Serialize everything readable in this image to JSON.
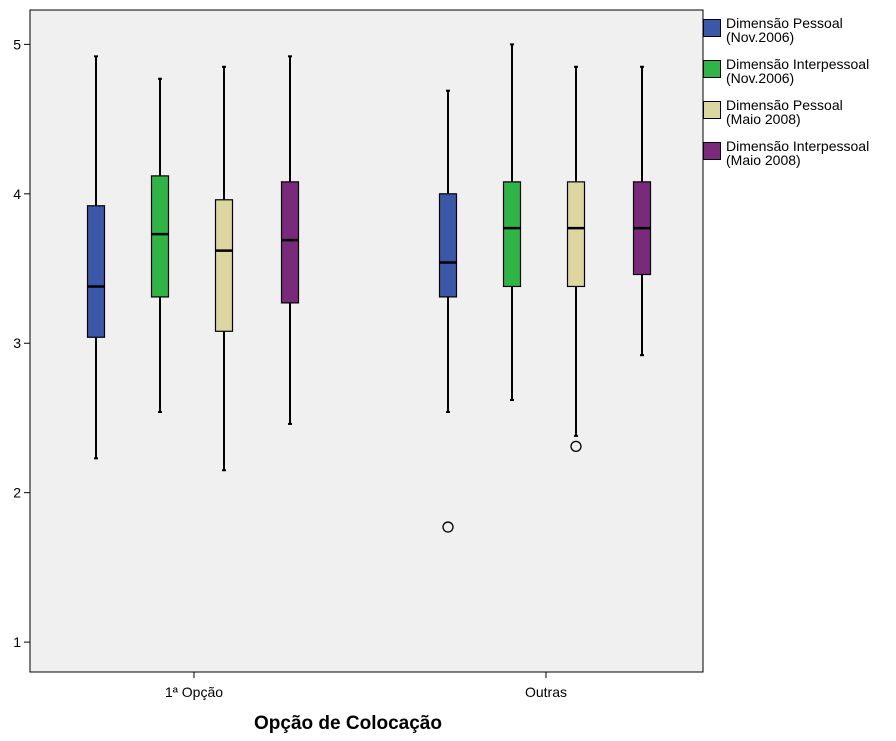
{
  "chart_data": {
    "type": "boxplot",
    "title": "",
    "xlabel": "Opção de Colocação",
    "ylabel": "",
    "ylim": [
      0.8,
      5.23
    ],
    "yticks": [
      1,
      2,
      3,
      4,
      5
    ],
    "categories": [
      "1ª Opção",
      "Outras"
    ],
    "legend_position": "top-right",
    "grid": false,
    "series": [
      {
        "name": "Dimensão Pessoal\n(Nov.2006)",
        "color": "#3b57a8",
        "boxes": [
          {
            "min": 2.23,
            "q1": 3.04,
            "median": 3.38,
            "q3": 3.92,
            "max": 4.92,
            "outliers": []
          },
          {
            "min": 2.54,
            "q1": 3.31,
            "median": 3.54,
            "q3": 4.0,
            "max": 4.69,
            "outliers": [
              1.77
            ]
          }
        ]
      },
      {
        "name": "Dimensão Interpessoal\n(Nov.2006)",
        "color": "#2fb545",
        "boxes": [
          {
            "min": 2.54,
            "q1": 3.31,
            "median": 3.73,
            "q3": 4.12,
            "max": 4.77,
            "outliers": []
          },
          {
            "min": 2.62,
            "q1": 3.38,
            "median": 3.77,
            "q3": 4.08,
            "max": 5.0,
            "outliers": []
          }
        ]
      },
      {
        "name": "Dimensão Pessoal\n(Maio 2008)",
        "color": "#dcd6a0",
        "boxes": [
          {
            "min": 2.15,
            "q1": 3.08,
            "median": 3.62,
            "q3": 3.96,
            "max": 4.85,
            "outliers": []
          },
          {
            "min": 2.38,
            "q1": 3.38,
            "median": 3.77,
            "q3": 4.08,
            "max": 4.85,
            "outliers": [
              2.31
            ]
          }
        ]
      },
      {
        "name": "Dimensão Interpessoal\n(Maio 2008)",
        "color": "#7b2a7b",
        "boxes": [
          {
            "min": 2.46,
            "q1": 3.27,
            "median": 3.69,
            "q3": 4.08,
            "max": 4.92,
            "outliers": []
          },
          {
            "min": 2.92,
            "q1": 3.46,
            "median": 3.77,
            "q3": 4.08,
            "max": 4.85,
            "outliers": []
          }
        ]
      }
    ]
  }
}
